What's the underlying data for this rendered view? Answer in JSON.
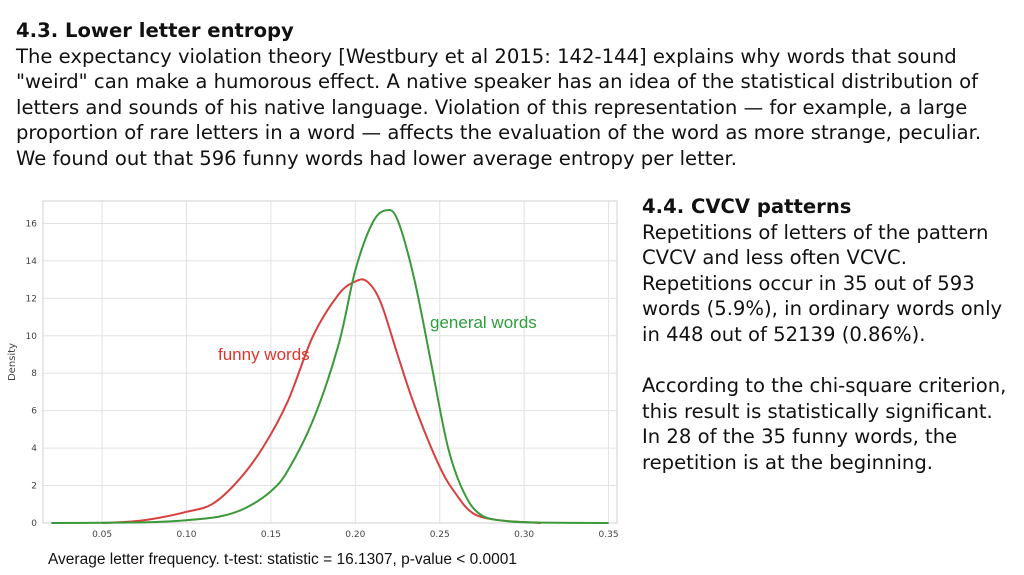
{
  "section_43": {
    "title": "4.3. Lower letter entropy",
    "body": "The expectancy violation theory [Westbury et al 2015: 142-144] explains why words that sound \"weird\" can make a humorous effect. A native speaker has an idea of the statistical distribution of letters and sounds of his native language. Violation of this representation — for example, a large proportion of rare letters in a word — affects the evaluation of the word as more strange, peculiar. We found out that 596 funny words had lower average entropy per letter."
  },
  "section_44": {
    "title": "4.4. CVCV patterns",
    "paragraph1": "Repetitions of letters of the pattern CVCV and less often VCVC. Repetitions occur in 35 out of 593 words (5.9%), in ordinary words only in 448 out of 52139 (0.86%).",
    "paragraph2": "According to the chi-square criterion, this result is statistically significant.",
    "paragraph3": "In 28 of the 35 funny words, the repetition is at the beginning."
  },
  "caption": "Average letter frequency. t-test: statistic = 16.1307, p-value < 0.0001",
  "chart_data": {
    "type": "line",
    "ylabel": "Density",
    "xlabel": "",
    "xlim": [
      0.015,
      0.355
    ],
    "ylim": [
      0,
      17.2
    ],
    "xticks": [
      "0.05",
      "0.10",
      "0.15",
      "0.20",
      "0.25",
      "0.30",
      "0.35"
    ],
    "yticks": [
      "0",
      "2",
      "4",
      "6",
      "8",
      "10",
      "12",
      "14",
      "16"
    ],
    "grid": true,
    "annotations": [
      {
        "text": "funny words",
        "color": "#e0352b"
      },
      {
        "text": "general words",
        "color": "#2e9e3e"
      }
    ],
    "series": [
      {
        "name": "funny words",
        "color": "#d84040",
        "x": [
          0.05,
          0.07,
          0.085,
          0.1,
          0.115,
          0.13,
          0.145,
          0.16,
          0.175,
          0.19,
          0.2,
          0.207,
          0.215,
          0.225,
          0.235,
          0.25,
          0.26,
          0.27,
          0.285,
          0.3,
          0.31
        ],
        "y": [
          0,
          0.1,
          0.3,
          0.6,
          1.0,
          2.2,
          4.0,
          6.5,
          10.0,
          12.2,
          12.9,
          12.9,
          11.8,
          9.0,
          6.3,
          3.0,
          1.5,
          0.5,
          0.15,
          0.05,
          0
        ]
      },
      {
        "name": "general words",
        "color": "#3a9a3a",
        "x": [
          0.02,
          0.06,
          0.08,
          0.1,
          0.12,
          0.135,
          0.15,
          0.16,
          0.175,
          0.19,
          0.2,
          0.21,
          0.218,
          0.225,
          0.235,
          0.245,
          0.255,
          0.265,
          0.275,
          0.29,
          0.31,
          0.35
        ],
        "y": [
          0,
          0.02,
          0.05,
          0.15,
          0.35,
          0.8,
          1.7,
          2.8,
          5.5,
          9.5,
          13.5,
          16.0,
          16.7,
          16.2,
          13.0,
          8.5,
          4.0,
          1.5,
          0.4,
          0.1,
          0.02,
          0
        ]
      }
    ]
  }
}
